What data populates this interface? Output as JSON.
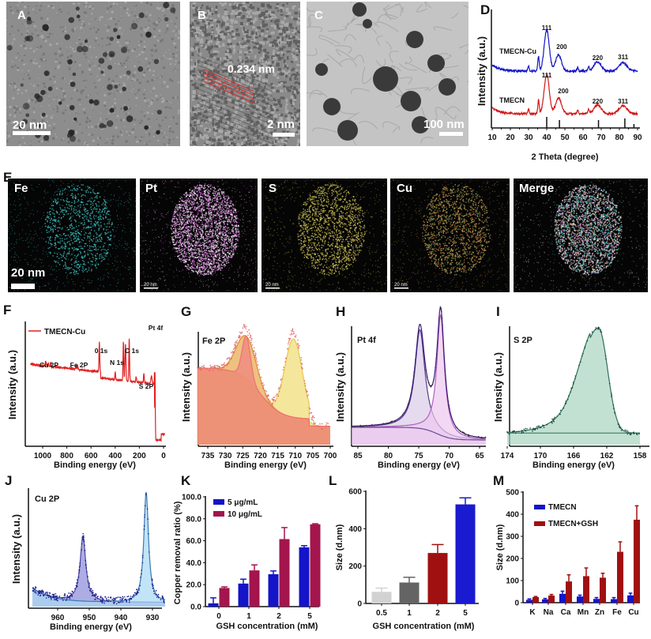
{
  "panels": {
    "A": {
      "label": "A",
      "scale": "20 nm"
    },
    "B": {
      "label": "B",
      "lattice": "0.234 nm",
      "scale": "2 nm"
    },
    "C": {
      "label": "C",
      "scale": "100 nm"
    },
    "D": {
      "label": "D"
    },
    "E": {
      "label": "E",
      "maps": [
        "Fe",
        "Pt",
        "S",
        "Cu",
        "Merge"
      ],
      "scale_large": "20 nm",
      "scale_small": "20 nm"
    },
    "F": {
      "label": "F"
    },
    "G": {
      "label": "G"
    },
    "H": {
      "label": "H"
    },
    "I": {
      "label": "I"
    },
    "J": {
      "label": "J"
    },
    "K": {
      "label": "K"
    },
    "L": {
      "label": "L"
    },
    "M": {
      "label": "M"
    }
  },
  "colors": {
    "blue": "#1414c8",
    "crimson": "#a3154c",
    "red": "#d01818",
    "dark_red": "#a01010"
  },
  "chart_data": [
    {
      "id": "D",
      "type": "line",
      "xlabel": "2 Theta (degree)",
      "ylabel": "Intensity (a.u.)",
      "xlim": [
        10,
        90
      ],
      "xticks": [
        "10",
        "20",
        "30",
        "40",
        "50",
        "60",
        "70",
        "80",
        "90"
      ],
      "series": [
        {
          "name": "TMECN-Cu",
          "color": "#1414c8",
          "peaks": [
            {
              "x": 40,
              "label": "111"
            },
            {
              "x": 46.5,
              "label": "200"
            },
            {
              "x": 68,
              "label": "220"
            },
            {
              "x": 82,
              "label": "311"
            }
          ]
        },
        {
          "name": "TMECN",
          "color": "#d01818",
          "peaks": [
            {
              "x": 40,
              "label": "111"
            },
            {
              "x": 46.5,
              "label": "200"
            },
            {
              "x": 68,
              "label": "220"
            },
            {
              "x": 82,
              "label": "311"
            }
          ]
        }
      ],
      "reference_ticks": [
        40,
        47,
        68.5,
        83,
        88
      ]
    },
    {
      "id": "F",
      "type": "line",
      "xlabel": "Binding energy (eV)",
      "ylabel": "Intensity (a.u.)",
      "xlim": [
        1100,
        -10
      ],
      "xticks": [
        "1000",
        "800",
        "600",
        "400",
        "200",
        "0"
      ],
      "legend": "TMECN-Cu",
      "annotations": [
        {
          "x": 945,
          "text": "Cu 2P"
        },
        {
          "x": 718,
          "text": "Fe 2P"
        },
        {
          "x": 531,
          "text": "0 1s"
        },
        {
          "x": 400,
          "text": "N 1s"
        },
        {
          "x": 284,
          "text": "C 1s"
        },
        {
          "x": 163,
          "text": "S 2P"
        },
        {
          "x": 71,
          "text": "Pt 4f"
        }
      ]
    },
    {
      "id": "G",
      "type": "line",
      "title": "Fe 2P",
      "xlabel": "Binding energy (eV)",
      "ylabel": "Intensity (a.u.)",
      "xlim": [
        738,
        700
      ],
      "xticks": [
        "735",
        "730",
        "725",
        "720",
        "715",
        "710",
        "705",
        "700"
      ],
      "peaks": [
        724,
        710.5
      ]
    },
    {
      "id": "H",
      "type": "line",
      "title": "Pt 4f",
      "xlabel": "Binding energy (eV)",
      "ylabel": "Intensity (a.u.)",
      "xlim": [
        86,
        64
      ],
      "xticks": [
        "85",
        "80",
        "75",
        "70",
        "65"
      ],
      "peaks": [
        74.8,
        71.4
      ]
    },
    {
      "id": "I",
      "type": "line",
      "title": "S 2P",
      "xlabel": "Binding energy (eV)",
      "ylabel": "Intensity (a.u.)",
      "xlim": [
        174,
        158
      ],
      "xticks": [
        "174",
        "170",
        "166",
        "162",
        "158"
      ],
      "peaks": [
        163
      ]
    },
    {
      "id": "J",
      "type": "line",
      "title": "Cu 2P",
      "xlabel": "Binding energy (eV)",
      "ylabel": "Intensity (a.u.)",
      "xlim": [
        968,
        926
      ],
      "xticks": [
        "960",
        "950",
        "940",
        "930"
      ],
      "peaks": [
        952,
        932
      ]
    },
    {
      "id": "K",
      "type": "bar",
      "xlabel": "GSH concentration (mM)",
      "ylabel": "Copper removal ratio (%)",
      "ylim": [
        0,
        100
      ],
      "yticks": [
        "0.0",
        "20.0",
        "40.0",
        "60.0",
        "80.0",
        "100.0"
      ],
      "categories": [
        "0",
        "1",
        "2",
        "5"
      ],
      "legend": "top-left",
      "series": [
        {
          "name": "5 μg/mL",
          "color": "#1414c8",
          "values": [
            3,
            21,
            29.5,
            54
          ],
          "errors": [
            5,
            4,
            3,
            1.5
          ]
        },
        {
          "name": "10 μg/mL",
          "color": "#a3154c",
          "values": [
            17,
            33,
            61.5,
            75
          ],
          "errors": [
            1,
            5,
            10.5,
            0.5
          ]
        }
      ]
    },
    {
      "id": "L",
      "type": "bar",
      "xlabel": "GSH concentration (mM)",
      "ylabel": "Size (d.nm)",
      "ylim": [
        0,
        600
      ],
      "yticks": [
        "0",
        "200",
        "400",
        "600"
      ],
      "categories": [
        "0.5",
        "1",
        "2",
        "5"
      ],
      "values": [
        62,
        112,
        270,
        530
      ],
      "errors": [
        20,
        28,
        45,
        35
      ],
      "colors": [
        "#d2d2d2",
        "#646464",
        "#a01010",
        "#1a1ad0"
      ]
    },
    {
      "id": "M",
      "type": "bar",
      "xlabel": "",
      "ylabel": "Size (d.nm)",
      "ylim": [
        0,
        500
      ],
      "yticks": [
        "0",
        "100",
        "200",
        "300",
        "400",
        "500"
      ],
      "categories": [
        "K",
        "Na",
        "Ca",
        "Mn",
        "Zn",
        "Fe",
        "Cu"
      ],
      "legend": "top-left",
      "series": [
        {
          "name": "TMECN",
          "color": "#1414c8",
          "values": [
            13,
            15,
            40,
            28,
            17,
            16,
            33
          ],
          "errors": [
            4,
            4,
            12,
            6,
            6,
            7,
            10
          ]
        },
        {
          "name": "TMECN+GSH",
          "color": "#a01010",
          "values": [
            25,
            32,
            96,
            120,
            113,
            230,
            375
          ],
          "errors": [
            3,
            5,
            30,
            37,
            20,
            45,
            63
          ]
        }
      ]
    }
  ]
}
